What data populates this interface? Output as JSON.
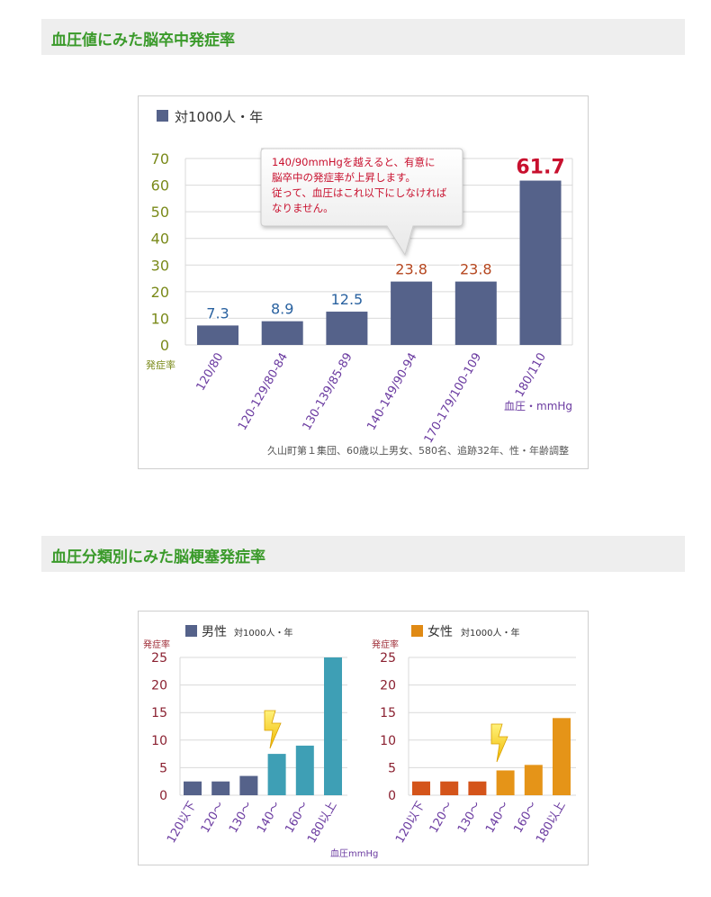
{
  "section1": {
    "title": "血圧値にみた脳卒中発症率"
  },
  "section2": {
    "title": "血圧分類別にみた脳梗塞発症率"
  },
  "chart_data": [
    {
      "type": "bar",
      "legend": "対1000人・年",
      "categories": [
        "120/80",
        "120-129/80-84",
        "130-139/85-89",
        "140-149/90-94",
        "170-179/100-109",
        "180/110"
      ],
      "values": [
        7.3,
        8.9,
        12.5,
        23.8,
        23.8,
        61.7
      ],
      "value_labels": [
        "7.3",
        "8.9",
        "12.5",
        "23.8",
        "23.8",
        "61.7"
      ],
      "value_label_colors": [
        "#2a62a0",
        "#2a62a0",
        "#2a62a0",
        "#b5461e",
        "#b5461e",
        "#c8102e"
      ],
      "yticks": [
        "0",
        "10",
        "20",
        "30",
        "40",
        "50",
        "60",
        "70"
      ],
      "ylim": [
        0,
        70
      ],
      "ylabel": "発症率",
      "xlabel": "血圧・mmHg",
      "callout": [
        "140/90mmHgを越えると、有意に",
        "脳卒中の発症率が上昇します。",
        "従って、血圧はこれ以下にしなければ",
        "なりません。"
      ],
      "note": "久山町第１集団、60歳以上男女、580名、追跡32年、性・年齢調整",
      "bar_color": "#55628a",
      "grid": true
    },
    {
      "type": "bar",
      "legend": "男性",
      "legend_unit": "対1000人・年",
      "ylabel": "発症率",
      "categories": [
        "120以下",
        "120〜",
        "130〜",
        "140〜",
        "160〜",
        "180以上"
      ],
      "values": [
        2.5,
        2.5,
        3.5,
        7.5,
        9,
        25
      ],
      "yticks": [
        "0",
        "5",
        "10",
        "15",
        "20",
        "25"
      ],
      "ylim": [
        0,
        25
      ],
      "xlabel": "血圧mmHg",
      "colors": [
        "#55628a",
        "#55628a",
        "#55628a",
        "#3e9fb5",
        "#3e9fb5",
        "#3e9fb5"
      ],
      "grid": true
    },
    {
      "type": "bar",
      "legend": "女性",
      "legend_unit": "対1000人・年",
      "ylabel": "発症率",
      "categories": [
        "120以下",
        "120〜",
        "130〜",
        "140〜",
        "160〜",
        "180以上"
      ],
      "values": [
        2.5,
        2.5,
        2.5,
        4.5,
        5.5,
        14
      ],
      "yticks": [
        "0",
        "5",
        "10",
        "15",
        "20",
        "25"
      ],
      "ylim": [
        0,
        25
      ],
      "colors": [
        "#d4541a",
        "#d4541a",
        "#d4541a",
        "#e59418",
        "#e59418",
        "#e59418"
      ],
      "grid": true
    }
  ]
}
